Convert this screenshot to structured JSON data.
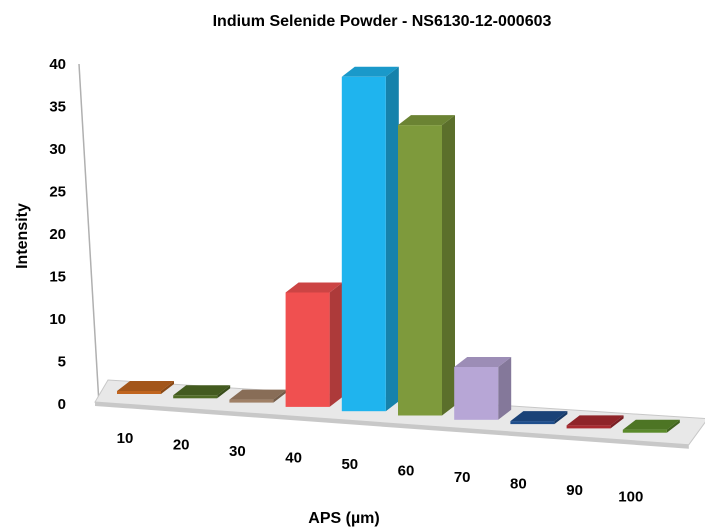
{
  "chart_data": {
    "type": "bar",
    "title": "Indium Selenide Powder - NS6130-12-000603",
    "xlabel": "APS (µm)",
    "ylabel": "Intensity",
    "categories": [
      "10",
      "20",
      "30",
      "40",
      "50",
      "60",
      "70",
      "80",
      "90",
      "100"
    ],
    "values": [
      0,
      0,
      0,
      13,
      38,
      33,
      6,
      0,
      0,
      0
    ],
    "colors": [
      "#c0651f",
      "#4f6b25",
      "#a08066",
      "#f05050",
      "#1fb4ee",
      "#7e9a3c",
      "#b7a6d6",
      "#1f4e8c",
      "#a82a30",
      "#5a8a2a"
    ],
    "yticks": [
      "0",
      "5",
      "10",
      "15",
      "20",
      "25",
      "30",
      "35",
      "40"
    ],
    "ylim": [
      0,
      40
    ],
    "grid": false,
    "legend": "none",
    "style": "3d-columns"
  }
}
